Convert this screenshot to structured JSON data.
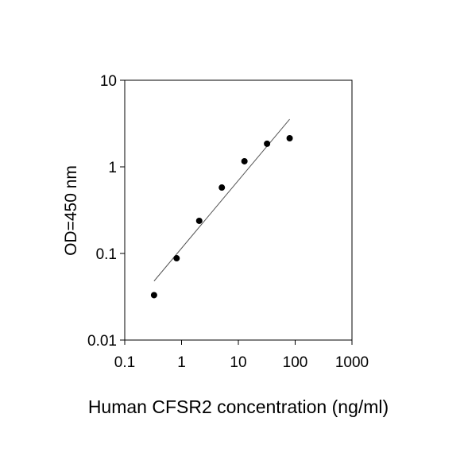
{
  "chart_data": {
    "type": "scatter",
    "x_label": "Human CFSR2 concentration (ng/ml)",
    "y_label": "OD=450 nm",
    "x": [
      0.328,
      0.819,
      2.048,
      5.12,
      12.8,
      32,
      80
    ],
    "values": [
      0.033,
      0.088,
      0.238,
      0.577,
      1.16,
      1.85,
      2.14
    ],
    "color": "#000000",
    "trend_line": {
      "x": [
        0.328,
        80
      ],
      "values": [
        0.048,
        3.55
      ],
      "color": "#555555"
    },
    "x_log": true,
    "y_log": true,
    "xlim": [
      0.1,
      1000
    ],
    "xticks": [
      0.1,
      1,
      10,
      100,
      1000
    ],
    "ylim": [
      0.01,
      10
    ],
    "yticks": [
      0.01,
      0.1,
      1,
      10
    ]
  }
}
